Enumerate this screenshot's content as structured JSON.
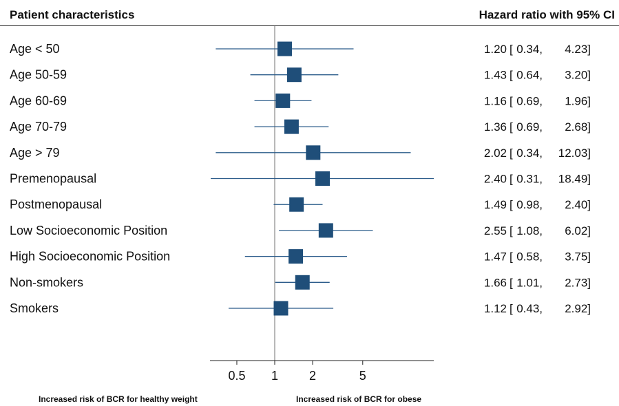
{
  "header": {
    "left": "Patient characteristics",
    "right": "Hazard ratio with 95% CI"
  },
  "footer": {
    "left": "Increased risk of BCR for healthy weight",
    "right": "Increased risk of BCR for obese"
  },
  "colors": {
    "marker": "#1f4e79",
    "ci_line": "#2a5b8a",
    "reference_line": "#888888",
    "text": "#111111"
  },
  "chart_data": {
    "type": "forest",
    "x_scale": "log",
    "xlim": [
      0.3,
      16
    ],
    "reference_value": 1,
    "ticks": [
      {
        "value": 0.5,
        "label": "0.5"
      },
      {
        "value": 1,
        "label": "1"
      },
      {
        "value": 2,
        "label": "2"
      },
      {
        "value": 5,
        "label": "5"
      }
    ],
    "rows": [
      {
        "label": "Age < 50",
        "hr": 1.2,
        "lo": 0.34,
        "hi": 4.23,
        "hr_text": "1.20",
        "lo_text": "0.34,",
        "hi_text": "4.23]"
      },
      {
        "label": "Age 50-59",
        "hr": 1.43,
        "lo": 0.64,
        "hi": 3.2,
        "hr_text": "1.43",
        "lo_text": "0.64,",
        "hi_text": "3.20]"
      },
      {
        "label": "Age 60-69",
        "hr": 1.16,
        "lo": 0.69,
        "hi": 1.96,
        "hr_text": "1.16",
        "lo_text": "0.69,",
        "hi_text": "1.96]"
      },
      {
        "label": "Age 70-79",
        "hr": 1.36,
        "lo": 0.69,
        "hi": 2.68,
        "hr_text": "1.36",
        "lo_text": "0.69,",
        "hi_text": "2.68]"
      },
      {
        "label": "Age > 79",
        "hr": 2.02,
        "lo": 0.34,
        "hi": 12.03,
        "hr_text": "2.02",
        "lo_text": "0.34,",
        "hi_text": "12.03]"
      },
      {
        "label": "Premenopausal",
        "hr": 2.4,
        "lo": 0.31,
        "hi": 18.49,
        "hr_text": "2.40",
        "lo_text": "0.31,",
        "hi_text": "18.49]"
      },
      {
        "label": "Postmenopausal",
        "hr": 1.49,
        "lo": 0.98,
        "hi": 2.4,
        "hr_text": "1.49",
        "lo_text": "0.98,",
        "hi_text": "2.40]"
      },
      {
        "label": "Low Socioeconomic Position",
        "hr": 2.55,
        "lo": 1.08,
        "hi": 6.02,
        "hr_text": "2.55",
        "lo_text": "1.08,",
        "hi_text": "6.02]"
      },
      {
        "label": "High Socioeconomic Position",
        "hr": 1.47,
        "lo": 0.58,
        "hi": 3.75,
        "hr_text": "1.47",
        "lo_text": "0.58,",
        "hi_text": "3.75]"
      },
      {
        "label": "Non-smokers",
        "hr": 1.66,
        "lo": 1.01,
        "hi": 2.73,
        "hr_text": "1.66",
        "lo_text": "1.01,",
        "hi_text": "2.73]"
      },
      {
        "label": "Smokers",
        "hr": 1.12,
        "lo": 0.43,
        "hi": 2.92,
        "hr_text": "1.12",
        "lo_text": "0.43,",
        "hi_text": "2.92]"
      }
    ]
  }
}
